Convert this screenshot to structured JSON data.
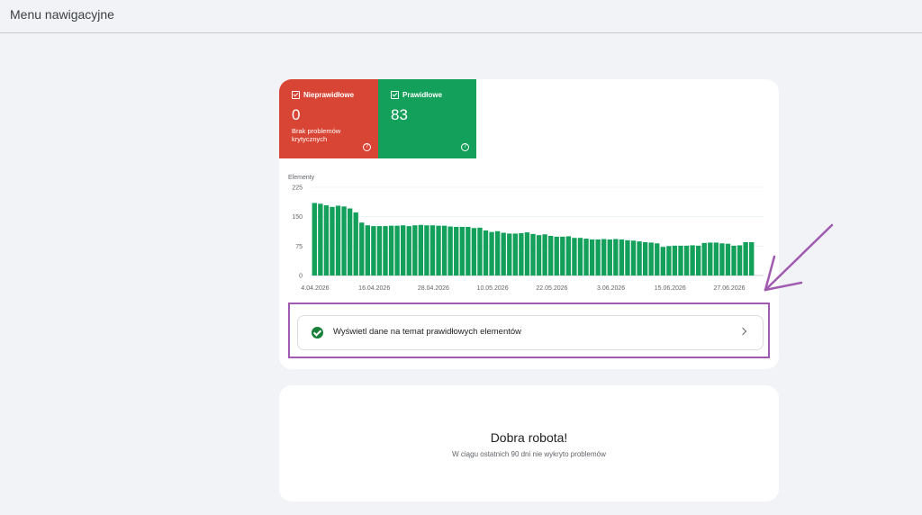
{
  "header": {
    "title": "Menu nawigacyjne"
  },
  "tiles": {
    "invalid": {
      "label": "Nieprawidłowe",
      "value": "0",
      "subtitle": "Brak problemów krytycznych",
      "color": "#d94535"
    },
    "valid": {
      "label": "Prawidłowe",
      "value": "83",
      "color": "#13a05a"
    }
  },
  "valid_row": {
    "label": "Wyświetl dane na temat prawidłowych elementów",
    "icon": "check-circle-icon"
  },
  "bottom_card": {
    "title": "Dobra robota!",
    "subtitle": "W ciągu ostatnich 90 dni nie wykryto problemów"
  },
  "annotation": {
    "color": "#a05bb0"
  },
  "chart_data": {
    "type": "bar",
    "ylabel": "Elementy",
    "ylim": [
      0,
      225
    ],
    "yticks": [
      0,
      75,
      150,
      225
    ],
    "x_tick_labels": [
      "4.04.2026",
      "16.04.2026",
      "28.04.2026",
      "10.05.2026",
      "22.05.2026",
      "3.06.2026",
      "15.06.2026",
      "27.06.2026"
    ],
    "bar_color": "#13a05a",
    "grid": true,
    "values": [
      185,
      183,
      179,
      175,
      178,
      176,
      171,
      161,
      135,
      128,
      126,
      126,
      126,
      127,
      127,
      128,
      126,
      128,
      129,
      128,
      128,
      127,
      127,
      125,
      124,
      124,
      124,
      121,
      122,
      115,
      111,
      113,
      109,
      107,
      107,
      108,
      110,
      106,
      103,
      105,
      101,
      99,
      99,
      100,
      96,
      96,
      94,
      92,
      92,
      93,
      92,
      93,
      92,
      90,
      89,
      87,
      85,
      84,
      82,
      73,
      75,
      76,
      76,
      76,
      77,
      76,
      83,
      84,
      84,
      82,
      81,
      76,
      77,
      85,
      85
    ]
  }
}
